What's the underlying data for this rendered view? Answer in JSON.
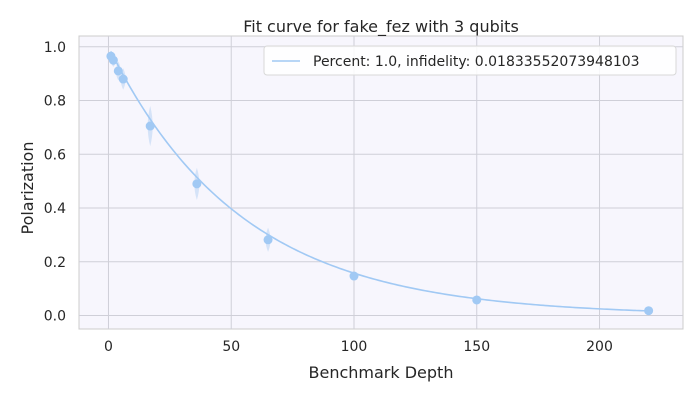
{
  "chart_data": {
    "type": "scatter",
    "title": "Fit curve for fake_fez with 3 qubits",
    "xlabel": "Benchmark Depth",
    "ylabel": "Polarization",
    "xlim": [
      -12,
      234
    ],
    "ylim": [
      -0.05,
      1.04
    ],
    "xticks": [
      0,
      50,
      100,
      150,
      200
    ],
    "yticks": [
      0.0,
      0.2,
      0.4,
      0.6,
      0.8,
      1.0
    ],
    "xtick_labels": [
      "0",
      "50",
      "100",
      "150",
      "200"
    ],
    "ytick_labels": [
      "0.0",
      "0.2",
      "0.4",
      "0.6",
      "0.8",
      "1.0"
    ],
    "grid": true,
    "legend_position": "top-right",
    "series": [
      {
        "name": "Percent: 1.0, infidelity: 0.01833552073948103",
        "kind": "fit-line",
        "color": "#a1c9f4",
        "fit": {
          "A": 1.0,
          "decay": 0.9817
        }
      }
    ],
    "points": {
      "color": "#a1c9f4",
      "band_color": "#c9dcf6",
      "x": [
        1,
        2,
        4,
        6,
        17,
        36,
        65,
        100,
        150,
        220
      ],
      "y": [
        0.965,
        0.95,
        0.91,
        0.88,
        0.705,
        0.49,
        0.282,
        0.147,
        0.058,
        0.018
      ],
      "spread": [
        0.02,
        0.025,
        0.035,
        0.04,
        0.075,
        0.06,
        0.045,
        0.015,
        0.01,
        0.008
      ]
    },
    "style": {
      "plot_background": "#f7f6fd",
      "grid_color": "#cfcfd8",
      "text_color": "#262626"
    }
  }
}
